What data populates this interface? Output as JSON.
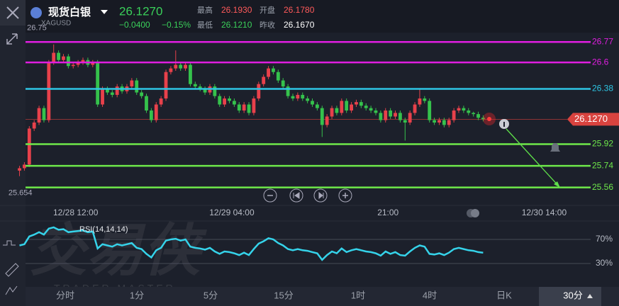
{
  "header": {
    "name": "现货白银",
    "symbol": "XAGUSD",
    "price": "26.1270",
    "change": "−0.0400",
    "change_pct": "−0.15%",
    "stats": [
      {
        "label": "最高",
        "value": "26.1930"
      },
      {
        "label": "开盘",
        "value": "26.1780"
      },
      {
        "label": "最低",
        "value": "26.1210"
      },
      {
        "label": "昨收",
        "value": "26.1670"
      }
    ]
  },
  "chart_data": [
    {
      "type": "candlestick",
      "up_color": "#e8414b",
      "down_color": "#35c24c",
      "open": [
        25.7,
        25.72,
        25.75,
        26.05,
        26.1,
        26.22,
        26.12,
        26.6,
        26.68,
        26.62,
        26.65,
        26.57,
        26.58,
        26.6,
        26.62,
        26.58,
        26.6,
        26.25,
        26.38,
        26.35,
        26.33,
        26.4,
        26.36,
        26.4,
        26.45,
        26.35,
        26.32,
        26.2,
        26.12,
        26.25,
        26.3,
        26.52,
        26.55,
        26.58,
        26.55,
        26.58,
        26.42,
        26.4,
        26.38,
        26.35,
        26.4,
        26.32,
        26.25,
        26.3,
        26.28,
        26.25,
        26.2,
        26.25,
        26.18,
        26.3,
        26.42,
        26.48,
        26.55,
        26.52,
        26.45,
        26.4,
        26.32,
        26.3,
        26.33,
        26.3,
        26.28,
        26.25,
        26.22,
        26.08,
        26.15,
        26.22,
        26.18,
        26.28,
        26.2,
        26.25,
        26.27,
        26.24,
        26.22,
        26.2,
        26.18,
        26.12,
        26.2,
        26.15,
        26.18,
        26.12,
        26.1,
        26.18,
        26.25,
        26.3,
        26.28,
        26.12,
        26.1,
        26.12,
        26.08,
        26.12,
        26.2,
        26.22,
        26.2,
        26.18,
        26.17,
        26.14
      ],
      "high": [
        25.74,
        25.77,
        26.07,
        26.12,
        26.24,
        26.24,
        26.62,
        26.75,
        26.7,
        26.67,
        26.67,
        26.6,
        26.62,
        26.64,
        26.64,
        26.62,
        26.62,
        26.4,
        26.4,
        26.37,
        26.42,
        26.42,
        26.42,
        26.47,
        26.47,
        26.37,
        26.34,
        26.22,
        26.27,
        26.32,
        26.54,
        26.57,
        26.7,
        26.6,
        26.6,
        26.6,
        26.44,
        26.42,
        26.4,
        26.42,
        26.42,
        26.34,
        26.32,
        26.32,
        26.3,
        26.27,
        26.27,
        26.27,
        26.32,
        26.44,
        26.5,
        26.57,
        26.57,
        26.54,
        26.47,
        26.42,
        26.34,
        26.35,
        26.35,
        26.32,
        26.3,
        26.27,
        26.24,
        26.17,
        26.24,
        26.24,
        26.3,
        26.3,
        26.27,
        26.29,
        26.29,
        26.26,
        26.24,
        26.22,
        26.2,
        26.22,
        26.22,
        26.2,
        26.2,
        26.14,
        26.2,
        26.27,
        26.38,
        26.32,
        26.3,
        26.14,
        26.14,
        26.14,
        26.14,
        26.22,
        26.24,
        26.24,
        26.22,
        26.19,
        26.19,
        26.16
      ],
      "low": [
        25.654,
        25.7,
        25.73,
        26.03,
        26.08,
        26.1,
        26.1,
        26.58,
        26.6,
        26.6,
        26.55,
        26.55,
        26.56,
        26.58,
        26.56,
        26.56,
        26.23,
        26.23,
        26.33,
        26.31,
        26.31,
        26.34,
        26.34,
        26.38,
        26.33,
        26.3,
        26.18,
        26.1,
        26.1,
        26.23,
        26.28,
        26.5,
        26.53,
        26.53,
        26.53,
        26.4,
        26.38,
        26.36,
        26.33,
        26.33,
        26.3,
        26.23,
        26.23,
        26.26,
        26.23,
        26.18,
        26.18,
        26.16,
        26.16,
        26.28,
        26.4,
        26.46,
        26.5,
        26.43,
        26.38,
        26.3,
        26.28,
        26.28,
        26.28,
        26.26,
        26.23,
        26.2,
        25.98,
        26.06,
        26.13,
        26.16,
        26.16,
        26.18,
        26.18,
        26.23,
        26.22,
        26.2,
        26.18,
        26.16,
        26.1,
        26.1,
        26.13,
        26.13,
        26.1,
        25.95,
        26.08,
        26.16,
        26.23,
        26.26,
        26.1,
        26.08,
        26.08,
        26.06,
        26.06,
        26.1,
        26.18,
        26.18,
        26.16,
        26.15,
        26.12,
        26.11
      ],
      "close": [
        25.72,
        25.75,
        26.05,
        26.1,
        26.22,
        26.12,
        26.6,
        26.68,
        26.62,
        26.65,
        26.57,
        26.58,
        26.6,
        26.62,
        26.58,
        26.6,
        26.25,
        26.38,
        26.35,
        26.33,
        26.4,
        26.36,
        26.4,
        26.45,
        26.35,
        26.32,
        26.2,
        26.12,
        26.25,
        26.3,
        26.52,
        26.55,
        26.58,
        26.55,
        26.58,
        26.42,
        26.4,
        26.38,
        26.35,
        26.4,
        26.32,
        26.25,
        26.3,
        26.28,
        26.25,
        26.2,
        26.25,
        26.18,
        26.3,
        26.42,
        26.48,
        26.55,
        26.52,
        26.45,
        26.4,
        26.32,
        26.3,
        26.33,
        26.3,
        26.28,
        26.25,
        26.22,
        26.08,
        26.15,
        26.22,
        26.18,
        26.28,
        26.2,
        26.25,
        26.27,
        26.24,
        26.22,
        26.2,
        26.18,
        26.12,
        26.2,
        26.15,
        26.18,
        26.12,
        26.1,
        26.18,
        26.25,
        26.3,
        26.28,
        26.12,
        26.1,
        26.12,
        26.08,
        26.12,
        26.2,
        26.22,
        26.2,
        26.18,
        26.17,
        26.14,
        26.127
      ],
      "xlim": [
        -4,
        111.5
      ],
      "xticks": [
        {
          "value": 11.5,
          "label": "12/28 12:00"
        },
        {
          "value": 43.5,
          "label": "12/29 04:00"
        },
        {
          "value": 75.5,
          "label": "21:00"
        },
        {
          "value": 107.5,
          "label": "12/30 14:00"
        }
      ],
      "ylim": [
        25.44,
        26.86
      ],
      "levels": [
        {
          "value": 26.77,
          "color": "#e01ee0"
        },
        {
          "value": 26.6,
          "color": "#e01ee0"
        },
        {
          "value": 26.38,
          "color": "#2ec6e4"
        },
        {
          "value": 25.92,
          "color": "#6ee84a"
        },
        {
          "value": 25.74,
          "color": "#6ee84a"
        },
        {
          "value": 25.56,
          "color": "#6ee84a"
        }
      ],
      "last_price": {
        "value": 26.127,
        "label": "26.1270",
        "color": "#d9433f"
      },
      "max_label": 26.75,
      "min_label": 25.654
    },
    {
      "type": "line",
      "title": "RSI(14,14,14)",
      "color": "#35d3ea",
      "values": [
        60,
        62,
        75,
        78,
        82,
        78,
        88,
        90,
        86,
        87,
        82,
        83,
        84,
        85,
        82,
        83,
        55,
        62,
        60,
        58,
        62,
        60,
        62,
        64,
        56,
        54,
        46,
        40,
        52,
        56,
        68,
        70,
        71,
        68,
        70,
        58,
        56,
        55,
        53,
        56,
        50,
        46,
        50,
        49,
        47,
        44,
        48,
        44,
        54,
        63,
        67,
        72,
        70,
        64,
        60,
        54,
        52,
        54,
        52,
        51,
        49,
        47,
        36,
        44,
        50,
        47,
        55,
        49,
        52,
        54,
        52,
        50,
        49,
        47,
        43,
        50,
        46,
        49,
        44,
        43,
        50,
        56,
        60,
        58,
        46,
        45,
        47,
        44,
        48,
        54,
        56,
        54,
        52,
        51,
        49,
        48
      ],
      "xlim": [
        -4,
        111.5
      ],
      "ylim": [
        0,
        100
      ],
      "yticks": [
        {
          "value": 70,
          "label": "70%"
        },
        {
          "value": 30,
          "label": "30%"
        }
      ]
    }
  ],
  "watermark": {
    "title": "交易侠",
    "subtitle": "TRADER MASTER"
  },
  "tabs": [
    "分时",
    "1分",
    "5分",
    "15分",
    "1时",
    "4时",
    "日K",
    "30分"
  ]
}
